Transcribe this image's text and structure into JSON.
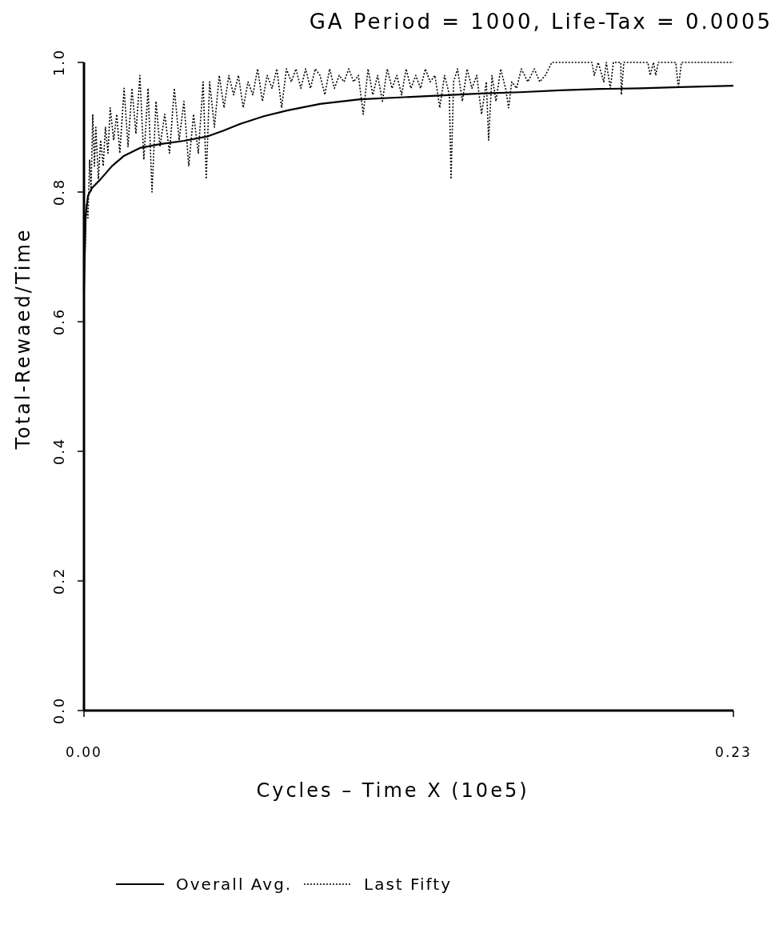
{
  "chart_data": {
    "type": "line",
    "title": "GA Period = 1000, Life-Tax = 0.0005",
    "xlabel": "Cycles – Time X (10e5)",
    "ylabel": "Total-Rewaed/Time",
    "xlim": [
      0,
      0.23
    ],
    "xticks": [
      {
        "value": 0,
        "label": "0.00"
      },
      {
        "value": 0.23,
        "label": "0.23"
      }
    ],
    "ylim": [
      0,
      1
    ],
    "yticks": [
      {
        "value": 0,
        "label": "0.0"
      },
      {
        "value": 0.2,
        "label": "0.2"
      },
      {
        "value": 0.4,
        "label": "0.4"
      },
      {
        "value": 0.6,
        "label": "0.6"
      },
      {
        "value": 0.8,
        "label": "0.8"
      },
      {
        "value": 1,
        "label": "1.0"
      }
    ],
    "grid": false,
    "legend": "bottom",
    "series": [
      {
        "name": "Overall Avg.",
        "color": "#000000",
        "line_style": "solid",
        "x": [
          0,
          0.0006,
          0.0014,
          0.0028,
          0.0057,
          0.0099,
          0.0142,
          0.0198,
          0.0269,
          0.0354,
          0.0439,
          0.0496,
          0.0552,
          0.0637,
          0.0722,
          0.0836,
          0.0977,
          0.1119,
          0.126,
          0.1402,
          0.1544,
          0.1685,
          0.1827,
          0.1969,
          0.211,
          0.23
        ],
        "values": [
          0.65,
          0.763,
          0.794,
          0.806,
          0.819,
          0.84,
          0.856,
          0.868,
          0.874,
          0.879,
          0.886,
          0.895,
          0.905,
          0.917,
          0.926,
          0.936,
          0.943,
          0.946,
          0.949,
          0.952,
          0.954,
          0.957,
          0.959,
          0.96,
          0.962,
          0.964
        ]
      },
      {
        "name": "Last Fifty",
        "color": "#000000",
        "line_style": "dotted",
        "x": [
          0.0003,
          0.0008,
          0.0014,
          0.002,
          0.0025,
          0.0031,
          0.0037,
          0.0042,
          0.0051,
          0.0059,
          0.0068,
          0.0076,
          0.0085,
          0.0093,
          0.0105,
          0.0116,
          0.0127,
          0.0142,
          0.0156,
          0.017,
          0.0184,
          0.0198,
          0.0212,
          0.0227,
          0.0241,
          0.0255,
          0.0269,
          0.0286,
          0.0303,
          0.032,
          0.0337,
          0.0354,
          0.0371,
          0.0388,
          0.0405,
          0.0422,
          0.0433,
          0.0445,
          0.0462,
          0.0479,
          0.0496,
          0.0513,
          0.053,
          0.0547,
          0.0564,
          0.0581,
          0.0598,
          0.0615,
          0.0632,
          0.0649,
          0.0666,
          0.0683,
          0.07,
          0.0717,
          0.0734,
          0.0751,
          0.0768,
          0.0785,
          0.0802,
          0.0819,
          0.0836,
          0.0853,
          0.087,
          0.0887,
          0.0904,
          0.0921,
          0.0938,
          0.0955,
          0.0972,
          0.0989,
          0.1006,
          0.1023,
          0.104,
          0.1057,
          0.1074,
          0.1091,
          0.1108,
          0.1125,
          0.1141,
          0.1158,
          0.1175,
          0.1192,
          0.1209,
          0.1226,
          0.1243,
          0.126,
          0.1277,
          0.1294,
          0.13,
          0.1309,
          0.1323,
          0.134,
          0.1357,
          0.1374,
          0.1391,
          0.1408,
          0.1425,
          0.1433,
          0.1445,
          0.1459,
          0.1476,
          0.1493,
          0.1504,
          0.1515,
          0.1532,
          0.1549,
          0.1572,
          0.1595,
          0.1614,
          0.1634,
          0.1657,
          0.1799,
          0.1807,
          0.1821,
          0.1841,
          0.185,
          0.1864,
          0.1875,
          0.1901,
          0.1903,
          0.1912,
          0.1997,
          0.2005,
          0.2017,
          0.2025,
          0.2034,
          0.2096,
          0.2105,
          0.2116,
          0.23
        ],
        "values": [
          0.7,
          0.78,
          0.76,
          0.85,
          0.8,
          0.92,
          0.84,
          0.9,
          0.82,
          0.88,
          0.84,
          0.9,
          0.86,
          0.93,
          0.88,
          0.92,
          0.86,
          0.96,
          0.87,
          0.96,
          0.89,
          0.98,
          0.85,
          0.96,
          0.8,
          0.94,
          0.87,
          0.92,
          0.86,
          0.96,
          0.88,
          0.94,
          0.84,
          0.92,
          0.86,
          0.97,
          0.82,
          0.97,
          0.9,
          0.98,
          0.93,
          0.98,
          0.95,
          0.98,
          0.93,
          0.97,
          0.95,
          0.99,
          0.94,
          0.98,
          0.96,
          0.99,
          0.93,
          0.99,
          0.97,
          0.99,
          0.96,
          0.99,
          0.96,
          0.99,
          0.98,
          0.95,
          0.99,
          0.96,
          0.98,
          0.97,
          0.99,
          0.97,
          0.98,
          0.92,
          0.99,
          0.95,
          0.98,
          0.94,
          0.99,
          0.96,
          0.98,
          0.95,
          0.99,
          0.96,
          0.98,
          0.96,
          0.99,
          0.97,
          0.98,
          0.93,
          0.98,
          0.95,
          0.82,
          0.97,
          0.99,
          0.94,
          0.99,
          0.96,
          0.98,
          0.92,
          0.97,
          0.88,
          0.98,
          0.94,
          0.99,
          0.96,
          0.93,
          0.97,
          0.96,
          0.99,
          0.97,
          0.99,
          0.97,
          0.98,
          1,
          1,
          0.98,
          1,
          0.97,
          1,
          0.96,
          1,
          1,
          0.95,
          1,
          1,
          0.98,
          1,
          0.98,
          1,
          1,
          0.96,
          1,
          1
        ]
      }
    ]
  }
}
